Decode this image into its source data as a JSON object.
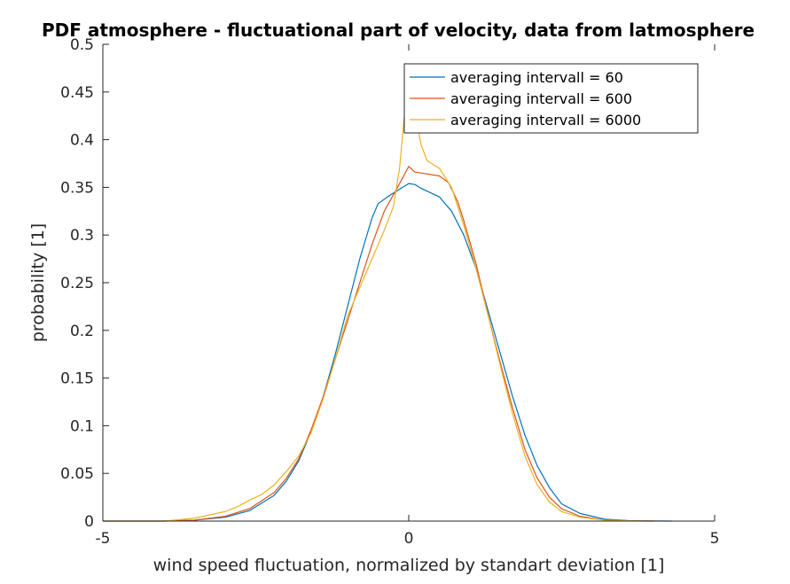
{
  "chart_data": {
    "type": "line",
    "title": "PDF atmosphere - fluctuational part of velocity, data from latmosphere",
    "xlabel": "wind speed fluctuation, normalized by standart deviation [1]",
    "ylabel": "probability [1]",
    "xlim": [
      -5,
      5
    ],
    "ylim": [
      0,
      0.5
    ],
    "xticks": [
      -5,
      0,
      5
    ],
    "xtick_labels": [
      "-5",
      "0",
      "5"
    ],
    "yticks": [
      0,
      0.05,
      0.1,
      0.15,
      0.2,
      0.25,
      0.3,
      0.35,
      0.4,
      0.45,
      0.5
    ],
    "ytick_labels": [
      "0",
      "0.05",
      "0.1",
      "0.15",
      "0.2",
      "0.25",
      "0.3",
      "0.35",
      "0.4",
      "0.45",
      "0.5"
    ],
    "grid": false,
    "legend_position": "top-right",
    "series": [
      {
        "name": "averaging intervall = 60",
        "color": "#0072BD",
        "x": [
          -5,
          -4,
          -3.5,
          -3,
          -2.6,
          -2.2,
          -2.0,
          -1.8,
          -1.6,
          -1.4,
          -1.2,
          -1.0,
          -0.8,
          -0.6,
          -0.5,
          -0.3,
          -0.1,
          0,
          0.1,
          0.2,
          0.3,
          0.5,
          0.7,
          0.9,
          1.1,
          1.3,
          1.5,
          1.7,
          1.9,
          2.1,
          2.3,
          2.5,
          2.8,
          3.2,
          3.6,
          4.0,
          4.3
        ],
        "y": [
          0,
          0,
          0.001,
          0.004,
          0.011,
          0.027,
          0.042,
          0.063,
          0.093,
          0.13,
          0.175,
          0.225,
          0.275,
          0.318,
          0.333,
          0.342,
          0.35,
          0.354,
          0.353,
          0.349,
          0.346,
          0.34,
          0.325,
          0.3,
          0.265,
          0.22,
          0.175,
          0.13,
          0.09,
          0.058,
          0.035,
          0.018,
          0.008,
          0.002,
          0.0005,
          0.0001,
          0
        ]
      },
      {
        "name": "averaging intervall = 600",
        "color": "#D95319",
        "x": [
          -5,
          -4,
          -3.5,
          -3,
          -2.6,
          -2.2,
          -2.0,
          -1.8,
          -1.6,
          -1.4,
          -1.2,
          -1.0,
          -0.8,
          -0.6,
          -0.4,
          -0.2,
          -0.05,
          0,
          0.1,
          0.3,
          0.5,
          0.65,
          0.8,
          0.9,
          1.1,
          1.3,
          1.5,
          1.7,
          1.9,
          2.1,
          2.3,
          2.5,
          2.8,
          3.2,
          3.6,
          4.0
        ],
        "y": [
          0,
          0,
          0.001,
          0.005,
          0.013,
          0.03,
          0.045,
          0.065,
          0.095,
          0.13,
          0.17,
          0.21,
          0.25,
          0.29,
          0.325,
          0.348,
          0.366,
          0.372,
          0.366,
          0.364,
          0.362,
          0.355,
          0.335,
          0.315,
          0.27,
          0.215,
          0.165,
          0.118,
          0.075,
          0.045,
          0.025,
          0.013,
          0.005,
          0.001,
          0.0002,
          0
        ]
      },
      {
        "name": "averaging intervall = 6000",
        "color": "#EDB120",
        "x": [
          -5,
          -4,
          -3.5,
          -3,
          -2.8,
          -2.6,
          -2.4,
          -2.2,
          -2.0,
          -1.8,
          -1.6,
          -1.4,
          -1.2,
          -1.0,
          -0.8,
          -0.6,
          -0.4,
          -0.25,
          -0.15,
          -0.05,
          0,
          0.05,
          0.1,
          0.2,
          0.3,
          0.5,
          0.7,
          0.9,
          1.1,
          1.3,
          1.5,
          1.7,
          1.9,
          2.1,
          2.3,
          2.5,
          2.8,
          3.2,
          3.6,
          4.0
        ],
        "y": [
          0,
          0,
          0.003,
          0.01,
          0.015,
          0.022,
          0.028,
          0.038,
          0.052,
          0.068,
          0.092,
          0.128,
          0.17,
          0.215,
          0.245,
          0.275,
          0.305,
          0.33,
          0.37,
          0.44,
          0.468,
          0.478,
          0.43,
          0.395,
          0.378,
          0.37,
          0.35,
          0.31,
          0.265,
          0.215,
          0.162,
          0.112,
          0.068,
          0.038,
          0.02,
          0.01,
          0.004,
          0.001,
          0.0002,
          0
        ]
      }
    ]
  }
}
